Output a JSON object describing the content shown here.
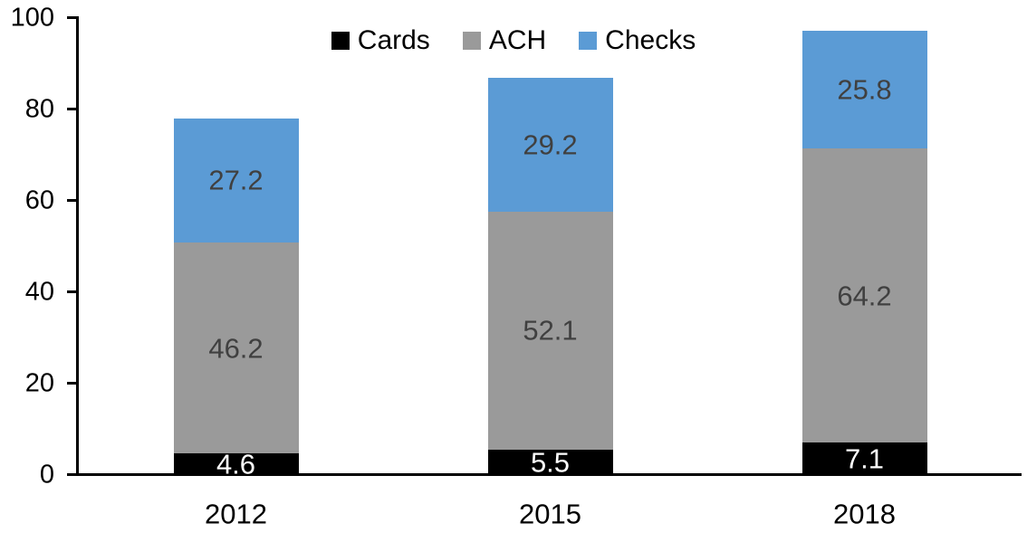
{
  "chart_data": {
    "type": "bar",
    "stacked": true,
    "title": "",
    "xlabel": "",
    "ylabel": "",
    "categories": [
      "2012",
      "2015",
      "2018"
    ],
    "series": [
      {
        "name": "Cards",
        "values": [
          4.6,
          5.5,
          7.1
        ],
        "color": "#000000",
        "label_color": "#ffffff"
      },
      {
        "name": "ACH",
        "values": [
          46.2,
          52.1,
          64.2
        ],
        "color": "#9a9a9a",
        "label_color": "#404040"
      },
      {
        "name": "Checks",
        "values": [
          27.2,
          29.2,
          25.8
        ],
        "color": "#5b9bd5",
        "label_color": "#404040"
      }
    ],
    "totals": [
      78.0,
      86.8,
      97.1
    ],
    "ylim": [
      0,
      100
    ],
    "yticks": [
      0,
      20,
      40,
      60,
      80,
      100
    ],
    "grid": false,
    "data_labels": true,
    "legend_position": "top-center",
    "axis_color": "#000000",
    "background_color": "#ffffff"
  }
}
